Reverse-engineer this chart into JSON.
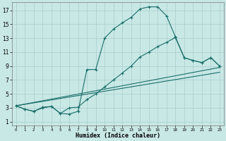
{
  "background_color": "#c8e8e5",
  "grid_color": "#a8cece",
  "line_color": "#1a6e6a",
  "xlabel": "Humidex (Indice chaleur)",
  "xlim": [
    -0.5,
    23.5
  ],
  "ylim": [
    0.5,
    18.2
  ],
  "xticks": [
    0,
    1,
    2,
    3,
    4,
    5,
    6,
    7,
    8,
    9,
    10,
    11,
    12,
    13,
    14,
    15,
    16,
    17,
    18,
    19,
    20,
    21,
    22,
    23
  ],
  "yticks": [
    1,
    3,
    5,
    7,
    9,
    11,
    13,
    15,
    17
  ],
  "line1_x": [
    0,
    1,
    2,
    3,
    4,
    5,
    6,
    7,
    8,
    9,
    10,
    11,
    12,
    13,
    14,
    15,
    16,
    17,
    18,
    19,
    20,
    21,
    22,
    23
  ],
  "line1_y": [
    3.3,
    2.8,
    2.5,
    3.0,
    3.2,
    2.2,
    2.1,
    2.5,
    8.5,
    8.5,
    13.0,
    14.3,
    15.2,
    16.0,
    17.2,
    17.5,
    17.5,
    16.2,
    13.2,
    10.2,
    9.8,
    9.5,
    10.2,
    9.0
  ],
  "line2_x": [
    0,
    1,
    2,
    3,
    4,
    5,
    6,
    7,
    8,
    9,
    10,
    11,
    12,
    13,
    14,
    15,
    16,
    17,
    18,
    19,
    20,
    21,
    22,
    23
  ],
  "line2_y": [
    3.3,
    2.8,
    2.5,
    3.1,
    3.2,
    2.2,
    3.0,
    3.1,
    4.2,
    5.0,
    6.0,
    7.0,
    8.0,
    9.0,
    10.3,
    11.0,
    11.8,
    12.4,
    13.1,
    10.2,
    9.8,
    9.5,
    10.2,
    9.0
  ],
  "line3_x": [
    0,
    23
  ],
  "line3_y": [
    3.3,
    8.8
  ],
  "line4_x": [
    0,
    23
  ],
  "line4_y": [
    3.3,
    8.1
  ]
}
